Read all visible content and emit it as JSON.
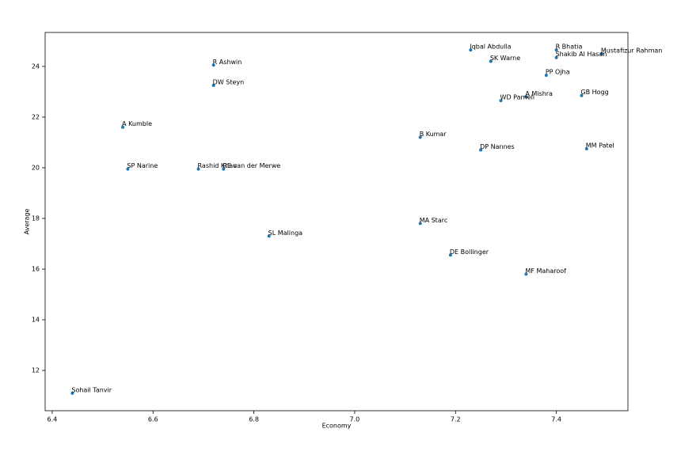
{
  "chart_data": {
    "type": "scatter",
    "x_label": "Economy",
    "y_label": "Average",
    "x": [
      7.23,
      7.4,
      7.49,
      7.4,
      7.27,
      6.72,
      7.38,
      6.72,
      7.45,
      7.34,
      7.29,
      6.54,
      7.13,
      7.46,
      7.25,
      6.55,
      6.69,
      6.74,
      7.13,
      6.83,
      7.19,
      7.34,
      6.44
    ],
    "values": [
      24.65,
      24.65,
      24.5,
      24.35,
      24.2,
      24.05,
      23.65,
      23.25,
      22.85,
      22.8,
      22.65,
      21.6,
      21.2,
      20.75,
      20.7,
      19.95,
      19.95,
      19.95,
      17.8,
      17.3,
      16.55,
      15.8,
      11.1
    ],
    "labels": [
      "Iqbal Abdulla",
      "R Bhatia",
      "Mustafizur Rahman",
      "Shakib Al Hasan",
      "SK Warne",
      "R Ashwin",
      "PP Ojha",
      "DW Steyn",
      "GB Hogg",
      "A Mishra",
      "WD Parnell",
      "A Kumble",
      "B Kumar",
      "MM Patel",
      "DP Nannes",
      "SP Narine",
      "Rashid Khan",
      "RE van der Merwe",
      "MA Starc",
      "SL Malinga",
      "DE Bollinger",
      "MF Maharoof",
      "Sohail Tanvir"
    ],
    "color": "#1f77b4",
    "xlim": [
      6.386,
      7.542
    ],
    "xticks": [
      6.4,
      6.6,
      6.8,
      {
        "value": 7,
        "label": "7.0"
      },
      7.2,
      7.4
    ],
    "ylim": [
      10.41,
      25.34
    ],
    "yticks": [
      12,
      14,
      16,
      18,
      20,
      22,
      24
    ],
    "grid": false
  }
}
